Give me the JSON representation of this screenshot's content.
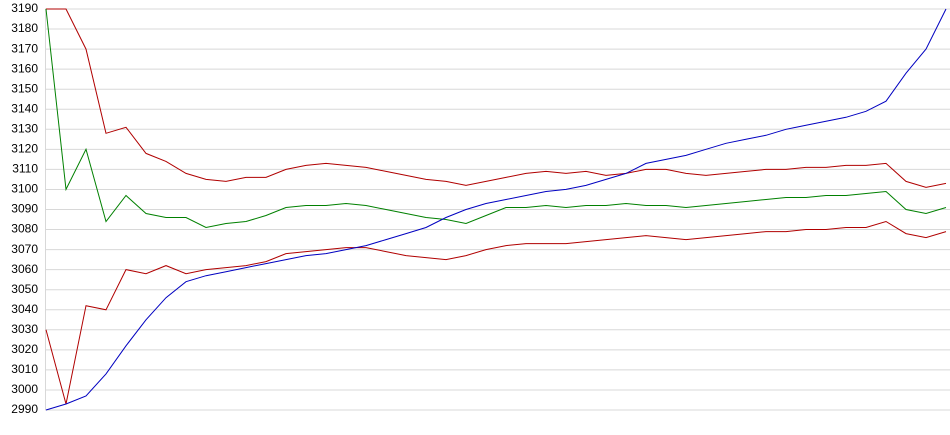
{
  "chart_data": {
    "type": "line",
    "categories": [
      null,
      null,
      null,
      null,
      null,
      null,
      null,
      null,
      null,
      null,
      null,
      null,
      null,
      null,
      null,
      null,
      null,
      null,
      null,
      null,
      null,
      null,
      null,
      null,
      null,
      null,
      null,
      null,
      null,
      null,
      null,
      null,
      null,
      null,
      null,
      null,
      null,
      null,
      null,
      null,
      null,
      null,
      null,
      null,
      null,
      null
    ],
    "series": [
      {
        "color": "#b00000",
        "values": [
          3190,
          3190,
          3170,
          3128,
          3131,
          3118,
          3114,
          3108,
          3105,
          3104,
          3106,
          3106,
          3110,
          3112,
          3113,
          3112,
          3111,
          3109,
          3107,
          3105,
          3104,
          3102,
          3104,
          3106,
          3108,
          3109,
          3108,
          3109,
          3107,
          3108,
          3110,
          3110,
          3108,
          3107,
          3108,
          3109,
          3110,
          3110,
          3111,
          3111,
          3112,
          3112,
          3113,
          3104,
          3101,
          3103
        ]
      },
      {
        "color": "#008000",
        "values": [
          3190,
          3100,
          3120,
          3084,
          3097,
          3088,
          3086,
          3086,
          3081,
          3083,
          3084,
          3087,
          3091,
          3092,
          3092,
          3093,
          3092,
          3090,
          3088,
          3086,
          3085,
          3083,
          3087,
          3091,
          3091,
          3092,
          3091,
          3092,
          3092,
          3093,
          3092,
          3092,
          3091,
          3092,
          3093,
          3094,
          3095,
          3096,
          3096,
          3097,
          3097,
          3098,
          3099,
          3090,
          3088,
          3091
        ]
      },
      {
        "color": "#b00000",
        "values": [
          3030,
          2993,
          3042,
          3040,
          3060,
          3058,
          3062,
          3058,
          3060,
          3061,
          3062,
          3064,
          3068,
          3069,
          3070,
          3071,
          3071,
          3069,
          3067,
          3066,
          3065,
          3067,
          3070,
          3072,
          3073,
          3073,
          3073,
          3074,
          3075,
          3076,
          3077,
          3076,
          3075,
          3076,
          3077,
          3078,
          3079,
          3079,
          3080,
          3080,
          3081,
          3081,
          3084,
          3078,
          3076,
          3079
        ]
      },
      {
        "color": "#0000c0",
        "values": [
          2990,
          2993,
          2997,
          3008,
          3022,
          3035,
          3046,
          3054,
          3057,
          3059,
          3061,
          3063,
          3065,
          3067,
          3068,
          3070,
          3072,
          3075,
          3078,
          3081,
          3086,
          3090,
          3093,
          3095,
          3097,
          3099,
          3100,
          3102,
          3105,
          3108,
          3113,
          3115,
          3117,
          3120,
          3123,
          3125,
          3127,
          3130,
          3132,
          3134,
          3136,
          3139,
          3144,
          3158,
          3170,
          3190
        ]
      }
    ],
    "ylim": [
      2990,
      3190
    ],
    "yticks": [
      2990,
      3000,
      3010,
      3020,
      3030,
      3040,
      3050,
      3060,
      3070,
      3080,
      3090,
      3100,
      3110,
      3120,
      3130,
      3140,
      3150,
      3160,
      3170,
      3180,
      3190
    ],
    "grid": true
  }
}
